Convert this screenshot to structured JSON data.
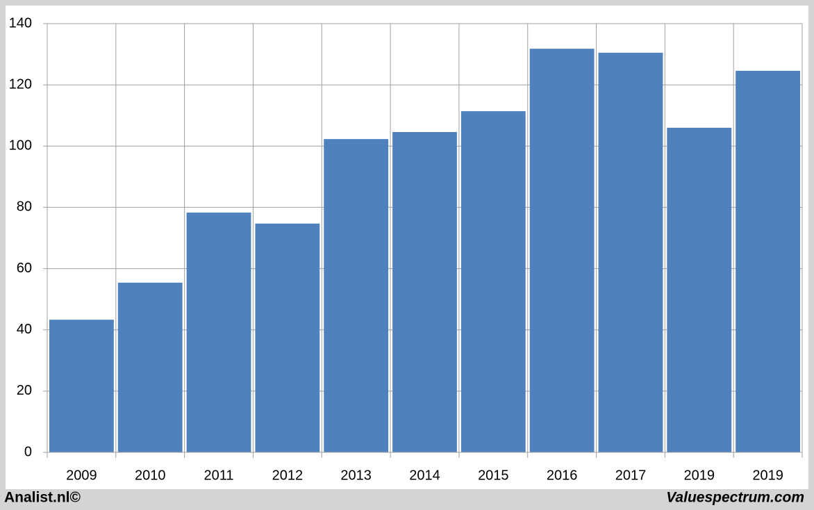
{
  "chart_data": {
    "type": "bar",
    "categories": [
      "2009",
      "2010",
      "2011",
      "2012",
      "2013",
      "2014",
      "2015",
      "2016",
      "2017",
      "2019",
      "2019"
    ],
    "values": [
      43.3,
      55.4,
      78.3,
      74.7,
      102.3,
      104.6,
      111.4,
      131.8,
      130.5,
      106.0,
      124.6
    ],
    "color": "#4f81bd",
    "ylim": [
      0,
      140
    ],
    "yticks": [
      0,
      20,
      40,
      60,
      80,
      100,
      120,
      140
    ],
    "grid": true
  },
  "footer": {
    "left": "Analist.nl©",
    "right": "Valuespectrum.com"
  }
}
